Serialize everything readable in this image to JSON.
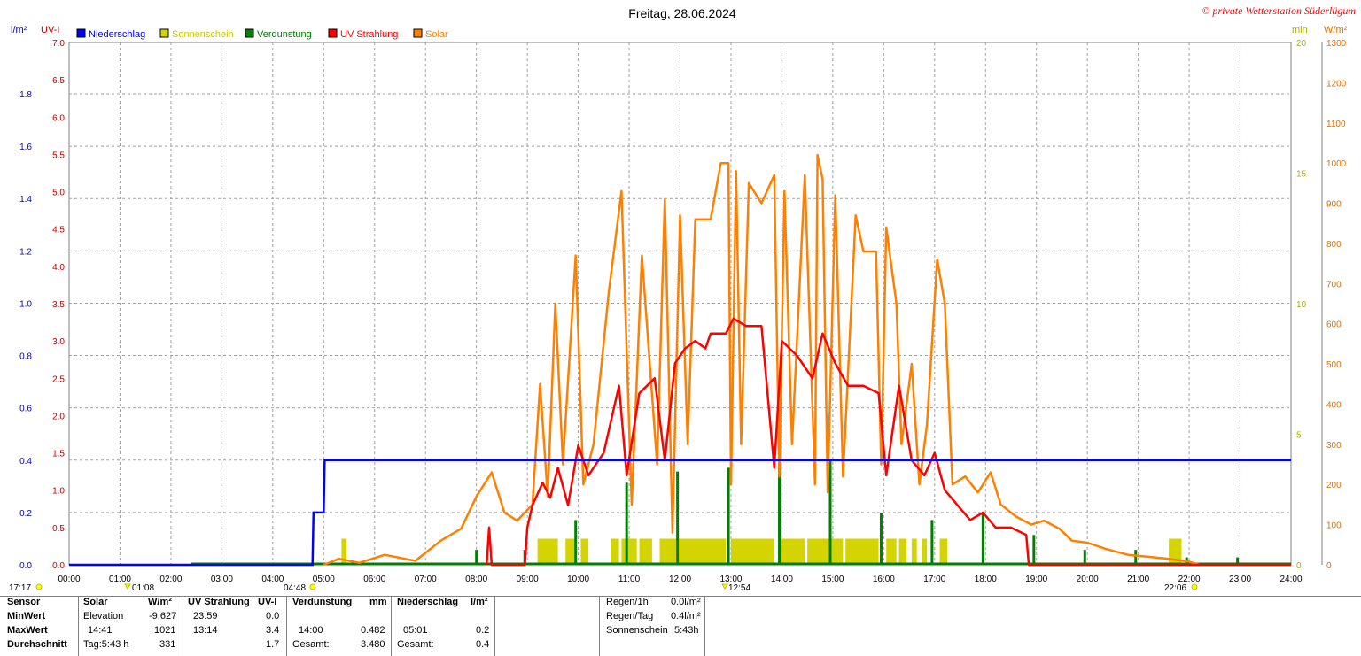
{
  "title": "Freitag, 28.06.2024",
  "copyright": "© private Wetterstation Süderlügum",
  "axes": {
    "left1_unit": "l/m²",
    "left2_unit": "UV-I",
    "right1_unit": "min",
    "right2_unit": "W/m²",
    "left1_ticks": [
      "0.0",
      "0.2",
      "0.4",
      "0.6",
      "0.8",
      "1.0",
      "1.2",
      "1.4",
      "1.6",
      "1.8"
    ],
    "left2_ticks": [
      "0.0",
      "0.5",
      "1.0",
      "1.5",
      "2.0",
      "2.5",
      "3.0",
      "3.5",
      "4.0",
      "4.5",
      "5.0",
      "5.5",
      "6.0",
      "6.5",
      "7.0"
    ],
    "right1_ticks": [
      "0",
      "5",
      "10",
      "15",
      "20"
    ],
    "right2_ticks": [
      "0",
      "100",
      "200",
      "300",
      "400",
      "500",
      "600",
      "700",
      "800",
      "900",
      "1000",
      "1100",
      "1200",
      "1300"
    ],
    "x_ticks": [
      "00:00",
      "01:00",
      "02:00",
      "03:00",
      "04:00",
      "05:00",
      "06:00",
      "07:00",
      "08:00",
      "09:00",
      "10:00",
      "11:00",
      "12:00",
      "13:00",
      "14:00",
      "15:00",
      "16:00",
      "17:00",
      "18:00",
      "19:00",
      "20:00",
      "21:00",
      "22:00",
      "23:00",
      "24:00"
    ]
  },
  "legend": [
    {
      "label": "Niederschlag",
      "color": "#0000ff"
    },
    {
      "label": "Sonnenschein",
      "color": "#d4d400"
    },
    {
      "label": "Verdunstung",
      "color": "#008000"
    },
    {
      "label": "UV Strahlung",
      "color": "#ff0000"
    },
    {
      "label": "Solar",
      "color": "#ff8000"
    }
  ],
  "markers": {
    "sunset_prev": "17:17",
    "moonset": "01:08",
    "sunrise": "04:48",
    "noon": "12:54",
    "sunset": "22:06"
  },
  "chart_data": {
    "type": "line",
    "x_range_hours": [
      0,
      24
    ],
    "grid": true,
    "legend_position": "top-left",
    "ylim_niederschlag": [
      0,
      2.0
    ],
    "ylim_uv": [
      0,
      7.0
    ],
    "ylim_sonnenschein_min": [
      0,
      20
    ],
    "ylim_solar": [
      0,
      1300
    ],
    "series": [
      {
        "name": "Niederschlag",
        "unit": "l/m²",
        "color": "#0000ff",
        "points": [
          [
            0,
            0
          ],
          [
            4.78,
            0
          ],
          [
            4.8,
            0.2
          ],
          [
            5.0,
            0.2
          ],
          [
            5.02,
            0.4
          ],
          [
            24,
            0.4
          ]
        ]
      },
      {
        "name": "Solar",
        "unit": "W/m²",
        "color": "#ff8000",
        "points": [
          [
            5.0,
            0
          ],
          [
            5.3,
            15
          ],
          [
            5.7,
            5
          ],
          [
            6.2,
            25
          ],
          [
            6.8,
            10
          ],
          [
            7.3,
            60
          ],
          [
            7.7,
            90
          ],
          [
            8.0,
            170
          ],
          [
            8.3,
            230
          ],
          [
            8.55,
            130
          ],
          [
            8.8,
            110
          ],
          [
            9.1,
            150
          ],
          [
            9.25,
            450
          ],
          [
            9.4,
            170
          ],
          [
            9.55,
            650
          ],
          [
            9.7,
            250
          ],
          [
            9.95,
            770
          ],
          [
            10.1,
            200
          ],
          [
            10.3,
            300
          ],
          [
            10.6,
            680
          ],
          [
            10.85,
            930
          ],
          [
            11.05,
            150
          ],
          [
            11.25,
            770
          ],
          [
            11.55,
            250
          ],
          [
            11.7,
            910
          ],
          [
            11.85,
            80
          ],
          [
            12.0,
            870
          ],
          [
            12.15,
            300
          ],
          [
            12.3,
            860
          ],
          [
            12.6,
            860
          ],
          [
            12.8,
            1000
          ],
          [
            12.95,
            1000
          ],
          [
            13.0,
            200
          ],
          [
            13.1,
            980
          ],
          [
            13.2,
            300
          ],
          [
            13.35,
            950
          ],
          [
            13.6,
            900
          ],
          [
            13.85,
            970
          ],
          [
            13.95,
            220
          ],
          [
            14.05,
            930
          ],
          [
            14.2,
            300
          ],
          [
            14.45,
            970
          ],
          [
            14.65,
            200
          ],
          [
            14.7,
            1020
          ],
          [
            14.8,
            960
          ],
          [
            14.9,
            180
          ],
          [
            15.05,
            920
          ],
          [
            15.2,
            220
          ],
          [
            15.45,
            870
          ],
          [
            15.6,
            780
          ],
          [
            15.85,
            780
          ],
          [
            15.95,
            250
          ],
          [
            16.05,
            840
          ],
          [
            16.25,
            650
          ],
          [
            16.35,
            300
          ],
          [
            16.55,
            500
          ],
          [
            16.7,
            200
          ],
          [
            16.85,
            350
          ],
          [
            17.05,
            760
          ],
          [
            17.2,
            650
          ],
          [
            17.35,
            200
          ],
          [
            17.6,
            220
          ],
          [
            17.85,
            180
          ],
          [
            18.1,
            230
          ],
          [
            18.3,
            150
          ],
          [
            18.6,
            120
          ],
          [
            18.9,
            100
          ],
          [
            19.15,
            110
          ],
          [
            19.45,
            90
          ],
          [
            19.7,
            60
          ],
          [
            20.0,
            55
          ],
          [
            20.35,
            40
          ],
          [
            20.8,
            25
          ],
          [
            21.2,
            20
          ],
          [
            21.6,
            15
          ],
          [
            22.0,
            8
          ],
          [
            22.2,
            0
          ]
        ]
      },
      {
        "name": "UV Strahlung",
        "unit": "UV-I",
        "color": "#ff0000",
        "points": [
          [
            8.2,
            0
          ],
          [
            8.25,
            0.5
          ],
          [
            8.3,
            0
          ],
          [
            8.95,
            0
          ],
          [
            9.0,
            0.5
          ],
          [
            9.1,
            0.8
          ],
          [
            9.3,
            1.1
          ],
          [
            9.45,
            0.9
          ],
          [
            9.6,
            1.3
          ],
          [
            9.8,
            0.8
          ],
          [
            10.0,
            1.6
          ],
          [
            10.2,
            1.2
          ],
          [
            10.5,
            1.5
          ],
          [
            10.8,
            2.4
          ],
          [
            10.95,
            1.2
          ],
          [
            11.2,
            2.3
          ],
          [
            11.5,
            2.5
          ],
          [
            11.7,
            1.4
          ],
          [
            11.9,
            2.7
          ],
          [
            12.1,
            2.9
          ],
          [
            12.3,
            3.0
          ],
          [
            12.5,
            2.9
          ],
          [
            12.6,
            3.1
          ],
          [
            12.9,
            3.1
          ],
          [
            13.05,
            3.3
          ],
          [
            13.3,
            3.2
          ],
          [
            13.6,
            3.2
          ],
          [
            13.85,
            1.3
          ],
          [
            14.0,
            3.0
          ],
          [
            14.3,
            2.8
          ],
          [
            14.6,
            2.5
          ],
          [
            14.8,
            3.1
          ],
          [
            15.05,
            2.7
          ],
          [
            15.3,
            2.4
          ],
          [
            15.6,
            2.4
          ],
          [
            15.9,
            2.3
          ],
          [
            16.05,
            1.2
          ],
          [
            16.3,
            2.4
          ],
          [
            16.55,
            1.4
          ],
          [
            16.8,
            1.2
          ],
          [
            17.0,
            1.5
          ],
          [
            17.2,
            1.0
          ],
          [
            17.45,
            0.8
          ],
          [
            17.7,
            0.6
          ],
          [
            17.95,
            0.7
          ],
          [
            18.2,
            0.5
          ],
          [
            18.5,
            0.5
          ],
          [
            18.8,
            0.4
          ],
          [
            18.85,
            0
          ],
          [
            24,
            0
          ]
        ]
      },
      {
        "name": "Verdunstung",
        "unit": "mm",
        "color": "#008000",
        "spikes_height_uvscale": [
          [
            8.0,
            0.2
          ],
          [
            8.95,
            0.2
          ],
          [
            9.95,
            0.6
          ],
          [
            10.95,
            1.1
          ],
          [
            11.95,
            1.25
          ],
          [
            12.95,
            1.3
          ],
          [
            13.95,
            1.6
          ],
          [
            14.95,
            1.4
          ],
          [
            15.95,
            0.7
          ],
          [
            16.95,
            0.6
          ],
          [
            17.95,
            0.7
          ],
          [
            18.95,
            0.4
          ],
          [
            19.95,
            0.2
          ],
          [
            20.95,
            0.2
          ],
          [
            21.95,
            0.1
          ],
          [
            22.95,
            0.1
          ]
        ]
      },
      {
        "name": "Sonnenschein",
        "unit": "min",
        "color": "#d4d400",
        "bars": [
          [
            5.35,
            5.45,
            1
          ],
          [
            9.2,
            9.6,
            1
          ],
          [
            9.75,
            9.95,
            1
          ],
          [
            10.05,
            10.2,
            1
          ],
          [
            10.65,
            10.8,
            1
          ],
          [
            10.85,
            11.15,
            1
          ],
          [
            11.2,
            11.45,
            1
          ],
          [
            11.6,
            12.9,
            1
          ],
          [
            13.0,
            13.85,
            1
          ],
          [
            13.95,
            14.45,
            1
          ],
          [
            14.5,
            15.2,
            1
          ],
          [
            15.25,
            15.9,
            1
          ],
          [
            16.05,
            16.25,
            1
          ],
          [
            16.3,
            16.45,
            1
          ],
          [
            16.55,
            16.65,
            1
          ],
          [
            16.75,
            16.85,
            1
          ],
          [
            17.1,
            17.25,
            1
          ],
          [
            21.6,
            21.85,
            1
          ]
        ]
      }
    ]
  },
  "stats": {
    "headers": {
      "sensor": "Sensor",
      "solar": "Solar",
      "solar_unit": "W/m²",
      "uv": "UV Strahlung",
      "uv_unit": "UV-I",
      "verd": "Verdunstung",
      "verd_unit": "mm",
      "nied": "Niederschlag",
      "nied_unit": "l/m²"
    },
    "rows": {
      "min_label": "MinWert",
      "max_label": "MaxWert",
      "avg_label": "Durchschnitt"
    },
    "solar": {
      "min_a": "Elevation",
      "min_b": "-9.627",
      "max_a": "14:41",
      "max_b": "1021",
      "avg_a": "Tag:5:43 h",
      "avg_b": "331"
    },
    "uv": {
      "min_a": "23:59",
      "min_b": "0.0",
      "max_a": "13:14",
      "max_b": "3.4",
      "avg_b": "1.7"
    },
    "verd": {
      "max_a": "14:00",
      "max_b": "0.482",
      "avg_a": "Gesamt:",
      "avg_b": "3.480"
    },
    "nied": {
      "max_a": "05:01",
      "max_b": "0.2",
      "avg_a": "Gesamt:",
      "avg_b": "0.4"
    },
    "extra": {
      "regen1h_label": "Regen/1h",
      "regen1h_value": "0.0l/m²",
      "regentag_label": "Regen/Tag",
      "regentag_value": "0.4l/m²",
      "sonne_label": "Sonnenschein",
      "sonne_value": "5:43h"
    }
  }
}
